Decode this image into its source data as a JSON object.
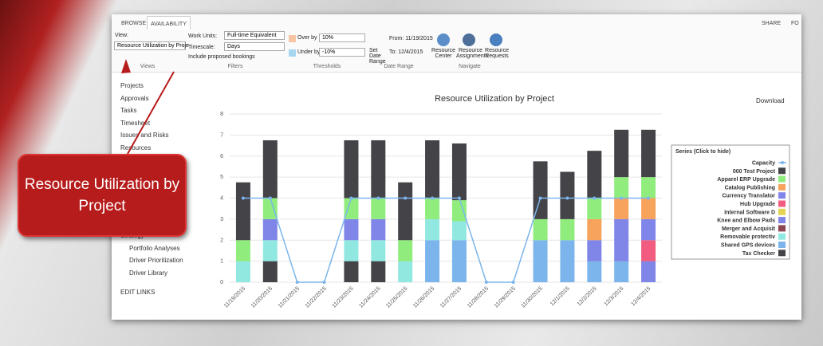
{
  "ribbon": {
    "tabs": [
      "BROWSE",
      "AVAILABILITY"
    ],
    "view_label": "View:",
    "view_value": "Resource Utilization by Proje",
    "views_group": "Views",
    "work_units_label": "Work Units:",
    "work_units_value": "Full-time Equivalent",
    "timescale_label": "Timescale:",
    "timescale_value": "Days",
    "include_proposed": "Include proposed bookings",
    "filters_group": "Filters",
    "over_by_label": "Over by",
    "over_by_value": "10%",
    "under_by_label": "Under by",
    "under_by_value": "-10%",
    "thresholds_group": "Thresholds",
    "from": "From: 11/19/2015",
    "to": "To: 12/4/2015",
    "set_date_range": "Set Date Range",
    "date_range_group": "Date Range",
    "resource_center": "Resource Center",
    "resource_assignments": "Resource Assignments",
    "resource_requests": "Resource Requests",
    "navigate_group": "Navigate",
    "share": "SHARE",
    "follow": "FO"
  },
  "nav": [
    "Projects",
    "Approvals",
    "Tasks",
    "Timesheet",
    "Issues and Risks",
    "Resources"
  ],
  "nav_lower": [
    "Strategy",
    "Portfolio Analyses",
    "Driver Prioritization",
    "Driver Library"
  ],
  "edit_links": "EDIT LINKS",
  "download": "Download",
  "callout": "Resource Utilization by Project",
  "chart_data": {
    "type": "stacked_bar",
    "title": "Resource Utilization by Project",
    "legend_title": "Series (Click to hide)",
    "categories": [
      "11/19/2015",
      "11/20/2015",
      "11/21/2015",
      "11/22/2015",
      "11/23/2015",
      "11/24/2015",
      "11/25/2015",
      "11/26/2015",
      "11/27/2015",
      "11/28/2015",
      "11/29/2015",
      "11/30/2015",
      "12/1/2015",
      "12/2/2015",
      "12/3/2015",
      "12/4/2015"
    ],
    "ylim": [
      0,
      8
    ],
    "yticks": [
      0,
      1,
      2,
      3,
      4,
      5,
      6,
      7,
      8
    ],
    "grid": true,
    "series": [
      {
        "name": "Capacity",
        "type": "line",
        "color": "#7cb5ec",
        "values": [
          4,
          4,
          0,
          0,
          4,
          4,
          4,
          4,
          4,
          0,
          0,
          4,
          4,
          4,
          4,
          4
        ]
      },
      {
        "name": "000 Test Project",
        "color": "#434348",
        "values": [
          2.75,
          2.75,
          null,
          null,
          2.75,
          2.75,
          2.75,
          2.75,
          2.7,
          null,
          null,
          2.75,
          2.25,
          2.25,
          2.25,
          2.25
        ]
      },
      {
        "name": "Apparel ERP Upgrade",
        "color": "#90ed7d",
        "values": [
          1,
          1,
          null,
          null,
          1,
          1,
          1,
          1,
          1,
          null,
          null,
          1,
          1,
          1,
          1,
          1
        ]
      },
      {
        "name": "Catalog Publishing",
        "color": "#f7a35c",
        "values": [
          null,
          null,
          null,
          null,
          null,
          null,
          null,
          null,
          null,
          null,
          null,
          null,
          null,
          1,
          1,
          1
        ]
      },
      {
        "name": "Currency Translator",
        "color": "#8085e9",
        "values": [
          null,
          null,
          null,
          null,
          null,
          null,
          null,
          null,
          null,
          null,
          null,
          null,
          null,
          null,
          null,
          1
        ]
      },
      {
        "name": "Hub Upgrade",
        "color": "#f15c80",
        "values": [
          null,
          null,
          null,
          null,
          null,
          null,
          null,
          null,
          null,
          null,
          null,
          null,
          null,
          null,
          null,
          1
        ]
      },
      {
        "name": "Internal Software D",
        "color": "#e4d354",
        "values": [
          null,
          null,
          null,
          null,
          null,
          null,
          null,
          null,
          null,
          null,
          null,
          null,
          null,
          null,
          null,
          null
        ]
      },
      {
        "name": "Knee and Elbow Pads",
        "color": "#8085e8",
        "values": [
          null,
          1,
          null,
          null,
          1,
          1,
          null,
          null,
          null,
          null,
          null,
          null,
          null,
          1,
          2,
          1
        ]
      },
      {
        "name": "Merger and Acquisit",
        "color": "#8d4653",
        "values": [
          null,
          null,
          null,
          null,
          null,
          null,
          null,
          null,
          null,
          null,
          null,
          null,
          null,
          null,
          null,
          null
        ]
      },
      {
        "name": "Removable protectiv",
        "color": "#91e8e1",
        "values": [
          1,
          1,
          null,
          null,
          1,
          1,
          1,
          1,
          0.9,
          null,
          null,
          null,
          null,
          null,
          null,
          null
        ]
      },
      {
        "name": "Shared GPS devices",
        "color": "#7cb5ec",
        "values": [
          null,
          null,
          null,
          null,
          null,
          null,
          null,
          2,
          2,
          null,
          null,
          2,
          2,
          1,
          1,
          null
        ]
      },
      {
        "name": "Tax Checker",
        "color": "#434348",
        "values": [
          null,
          1,
          null,
          null,
          1,
          1,
          null,
          null,
          null,
          null,
          null,
          null,
          null,
          null,
          null,
          null
        ]
      }
    ]
  }
}
